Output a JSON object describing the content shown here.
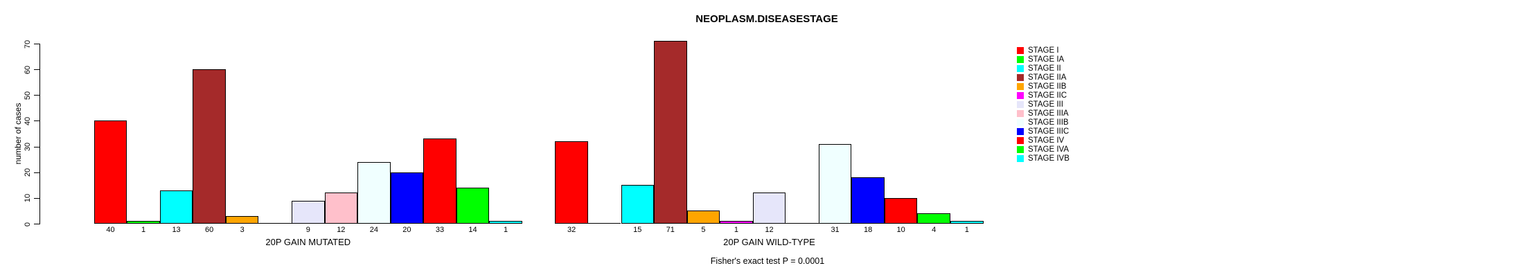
{
  "chart_data": {
    "type": "bar",
    "title": "NEOPLASM.DISEASESTAGE",
    "ylabel": "number of cases",
    "footnote": "Fisher's exact test P = 0.0001",
    "ylim": [
      0,
      70
    ],
    "yticks": [
      0,
      10,
      20,
      30,
      40,
      50,
      60,
      70
    ],
    "grid": false,
    "legend_position": "right",
    "categories": [
      "STAGE I",
      "STAGE IA",
      "STAGE II",
      "STAGE IIA",
      "STAGE IIB",
      "STAGE IIC",
      "STAGE III",
      "STAGE IIIA",
      "STAGE IIIB",
      "STAGE IIIC",
      "STAGE IV",
      "STAGE IVA",
      "STAGE IVB"
    ],
    "stage_colors": [
      "#FF0000",
      "#00FF00",
      "#00FFFF",
      "#A52A2A",
      "#FFA500",
      "#FF00FF",
      "#E6E6FA",
      "#FFC0CB",
      "#F0FFFF",
      "#0000FF",
      "#FF0000",
      "#00FF00",
      "#00FFFF"
    ],
    "series": [
      {
        "name": "20P GAIN MUTATED",
        "values": [
          40,
          1,
          13,
          60,
          3,
          0,
          9,
          12,
          24,
          20,
          33,
          14,
          1
        ]
      },
      {
        "name": "20P GAIN WILD-TYPE",
        "values": [
          32,
          0,
          15,
          71,
          5,
          1,
          12,
          0,
          31,
          18,
          10,
          4,
          1
        ]
      }
    ],
    "bar_outline_color": "#000000",
    "background_color": "#FFFFFF"
  }
}
